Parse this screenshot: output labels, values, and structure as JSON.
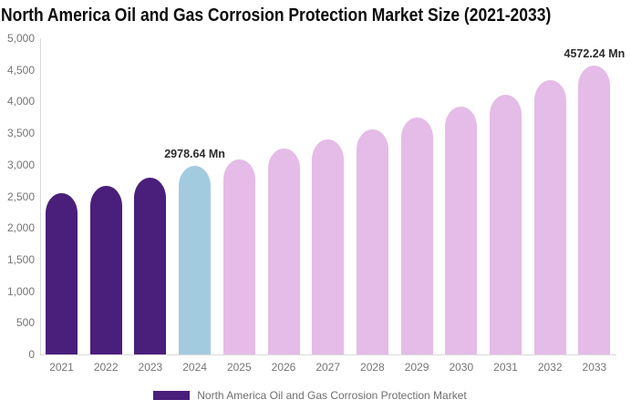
{
  "title": "North America Oil and Gas Corrosion Protection Market Size (2021-2033)",
  "colors": {
    "historical": "#4a1e7b",
    "base_year": "#a3cbe0",
    "forecast": "#e5bbe7",
    "axis_line": "#d9d9d9",
    "tick_label": "#757575",
    "data_label": "#2b2b2b",
    "title_text": "#0d0d0d",
    "legend_text": "#6e6e6e"
  },
  "chart_data": {
    "type": "bar",
    "title": "North America Oil and Gas Corrosion Protection Market Size (2021-2033)",
    "categories": [
      "2021",
      "2022",
      "2023",
      "2024",
      "2025",
      "2026",
      "2027",
      "2028",
      "2029",
      "2030",
      "2031",
      "2032",
      "2033"
    ],
    "series": [
      {
        "name": "North America Oil and Gas Corrosion Protection Market",
        "values": [
          2550,
          2670,
          2800,
          2978.64,
          3090,
          3250,
          3400,
          3560,
          3740,
          3920,
          4110,
          4330,
          4572.24
        ]
      }
    ],
    "color_roles": [
      "historical",
      "historical",
      "historical",
      "base_year",
      "forecast",
      "forecast",
      "forecast",
      "forecast",
      "forecast",
      "forecast",
      "forecast",
      "forecast",
      "forecast"
    ],
    "data_labels": {
      "2024": "2978.64 Mn",
      "2033": "4572.24 Mn"
    },
    "unit": "Mn",
    "xlabel": "",
    "ylabel": "",
    "ylim": [
      0,
      5000
    ],
    "ytick_step": 500,
    "ytick_labels": [
      "0",
      "500",
      "1,000",
      "1,500",
      "2,000",
      "2,500",
      "3,000",
      "3,500",
      "4,000",
      "4,500",
      "5,000"
    ],
    "grid": false,
    "legend_position": "bottom"
  },
  "legend": {
    "label": "North America Oil and Gas Corrosion Protection Market"
  }
}
